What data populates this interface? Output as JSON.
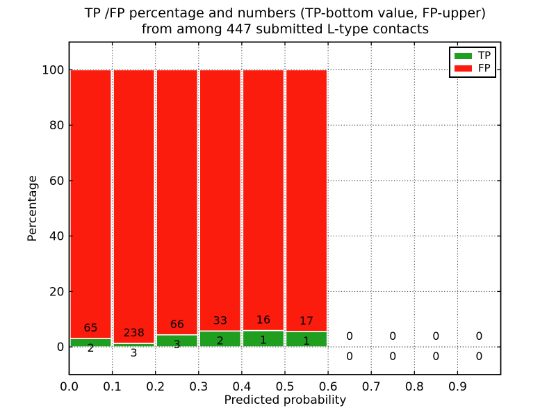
{
  "chart_data": {
    "type": "bar",
    "stacked": true,
    "title_line1": "TP /FP percentage and numbers (TP-bottom value, FP-upper)",
    "title_line2": "from among 447 submitted L-type contacts",
    "xlabel": "Predicted probability",
    "ylabel": "Percentage",
    "xlim": [
      0.0,
      1.0
    ],
    "ylim": [
      -10,
      110
    ],
    "x_ticks": [
      0.0,
      0.1,
      0.2,
      0.3,
      0.4,
      0.5,
      0.6,
      0.7,
      0.8,
      0.9
    ],
    "x_tick_labels": [
      "0.0",
      "0.1",
      "0.2",
      "0.3",
      "0.4",
      "0.5",
      "0.6",
      "0.7",
      "0.8",
      "0.9"
    ],
    "y_ticks": [
      0,
      20,
      40,
      60,
      80,
      100
    ],
    "y_tick_labels": [
      "0",
      "20",
      "40",
      "60",
      "80",
      "100"
    ],
    "grid": "dotted",
    "total_contacts": 447,
    "legend": {
      "position": "upper right",
      "entries": [
        {
          "label": "TP",
          "color": "#1f9e1f"
        },
        {
          "label": "FP",
          "color": "#fb1c0e"
        }
      ]
    },
    "bins": [
      {
        "range": [
          0.0,
          0.1
        ],
        "tp_count": 2,
        "fp_count": 65,
        "tp_pct": 2.99,
        "fp_pct": 97.01
      },
      {
        "range": [
          0.1,
          0.2
        ],
        "tp_count": 3,
        "fp_count": 238,
        "tp_pct": 1.24,
        "fp_pct": 98.76
      },
      {
        "range": [
          0.2,
          0.3
        ],
        "tp_count": 3,
        "fp_count": 66,
        "tp_pct": 4.35,
        "fp_pct": 95.65
      },
      {
        "range": [
          0.3,
          0.4
        ],
        "tp_count": 2,
        "fp_count": 33,
        "tp_pct": 5.71,
        "fp_pct": 94.29
      },
      {
        "range": [
          0.4,
          0.5
        ],
        "tp_count": 1,
        "fp_count": 16,
        "tp_pct": 5.88,
        "fp_pct": 94.12
      },
      {
        "range": [
          0.5,
          0.6
        ],
        "tp_count": 1,
        "fp_count": 17,
        "tp_pct": 5.56,
        "fp_pct": 94.44
      },
      {
        "range": [
          0.6,
          0.7
        ],
        "tp_count": 0,
        "fp_count": 0,
        "tp_pct": 0,
        "fp_pct": 0
      },
      {
        "range": [
          0.7,
          0.8
        ],
        "tp_count": 0,
        "fp_count": 0,
        "tp_pct": 0,
        "fp_pct": 0
      },
      {
        "range": [
          0.8,
          0.9
        ],
        "tp_count": 0,
        "fp_count": 0,
        "tp_pct": 0,
        "fp_pct": 0
      },
      {
        "range": [
          0.9,
          1.0
        ],
        "tp_count": 0,
        "fp_count": 0,
        "tp_pct": 0,
        "fp_pct": 0
      }
    ]
  }
}
